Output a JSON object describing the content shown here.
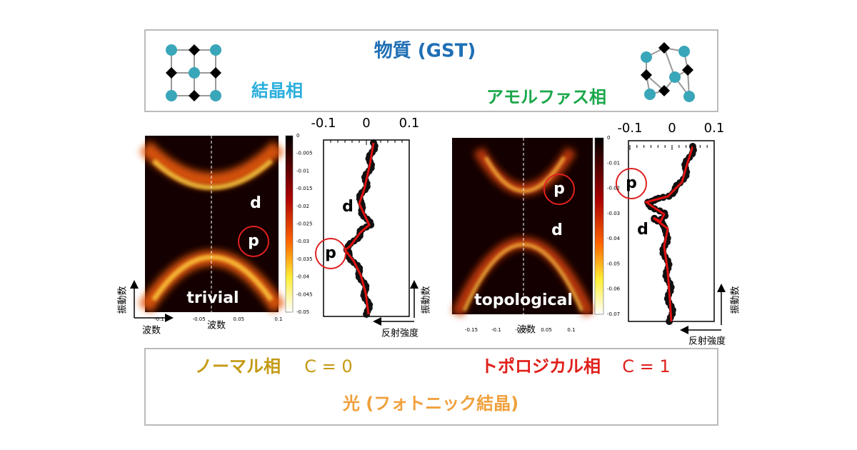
{
  "top_box": {
    "title": "物質 (GST)",
    "left_label": "結晶相",
    "right_label": "アモルファス相"
  },
  "panels": [
    {
      "heatmap_label": "trivial",
      "annot_d": "d",
      "annot_p": "p",
      "wave_label": "波数",
      "axis_wave_label": "波数",
      "freq_label": "振動数",
      "heatmap_xticks": [
        -0.1,
        -0.05,
        0.05,
        0.1
      ],
      "colorbar_ticks": [
        0,
        -0.005,
        -0.01,
        -0.015,
        -0.02,
        -0.025,
        -0.03,
        -0.035,
        -0.04,
        -0.045,
        -0.05
      ],
      "reflect_ticks": [
        -0.1,
        0,
        0.1
      ],
      "reflect_label": "反射強度",
      "reflect_freq_label": "振動数",
      "reflect_d": "d",
      "reflect_p": "p"
    },
    {
      "heatmap_label": "topological",
      "annot_d": "d",
      "annot_p": "p",
      "axis_wave_label": "波数",
      "heatmap_xticks": [
        -0.15,
        -0.1,
        -0.05,
        0.05,
        0.1
      ],
      "colorbar_ticks": [
        0,
        -0.01,
        -0.02,
        -0.03,
        -0.04,
        -0.05,
        -0.06,
        -0.07
      ],
      "reflect_ticks": [
        -0.1,
        0,
        0.1
      ],
      "reflect_label": "反射強度",
      "reflect_freq_label": "振動数",
      "reflect_d": "d",
      "reflect_p": "p"
    }
  ],
  "bottom_box": {
    "left_phase": "ノーマル相",
    "left_c": "C = 0",
    "right_phase": "トポロジカル相",
    "right_c": "C = 1",
    "caption": "光 (フォトニック結晶)"
  }
}
